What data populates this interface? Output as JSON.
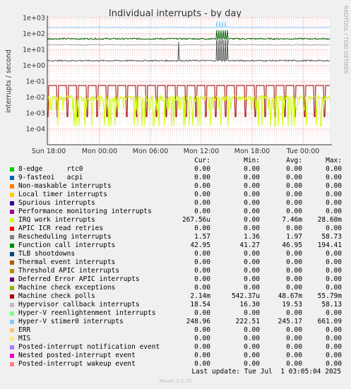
{
  "chart_data": {
    "type": "line",
    "title": "Individual interrupts - by day",
    "ylabel": "interrupts / second",
    "side_label": "RRDTOOL / TOBI OETIKER",
    "scale": "log",
    "ylim": [
      1e-05,
      1000
    ],
    "y_ticks": [
      "1e+03",
      "1e+02",
      "1e+01",
      "1e+00",
      "1e-01",
      "1e-02",
      "1e-03",
      "1e-04"
    ],
    "x_ticks": [
      "Sun 18:00",
      "Mon 00:00",
      "Mon 06:00",
      "Mon 12:00",
      "Mon 18:00",
      "Tue 00:00"
    ],
    "grid": true,
    "series": [
      {
        "name": "Hyper-V stimer0 interrupts",
        "typical": 245.17,
        "color": "#8cc8ff"
      },
      {
        "name": "Function call interrupts",
        "typical": 46.95,
        "color": "#006600"
      },
      {
        "name": "Hypervisor callback interrupts",
        "typical": 19.53,
        "color": "#aaaaaa"
      },
      {
        "name": "Rescheduling interrupts",
        "typical": 1.97,
        "color": "#555555"
      },
      {
        "name": "Machine check polls",
        "typical": 0.04867,
        "color": "#990000"
      },
      {
        "name": "IRQ work interrupts",
        "typical": 0.00746,
        "color": "#ccff00"
      }
    ]
  },
  "legend": {
    "headers": {
      "cur": "Cur:",
      "min": "Min:",
      "avg": "Avg:",
      "max": "Max:"
    },
    "rows": [
      {
        "name": "8-edge      rtc0",
        "color": "#00cc00",
        "cur": "0.00",
        "min": "0.00",
        "avg": "0.00",
        "max": "0.00"
      },
      {
        "name": "9-fasteoi   acpi",
        "color": "#0066b3",
        "cur": "0.00",
        "min": "0.00",
        "avg": "0.00",
        "max": "0.00"
      },
      {
        "name": "Non-maskable interrupts",
        "color": "#ff8000",
        "cur": "0.00",
        "min": "0.00",
        "avg": "0.00",
        "max": "0.00"
      },
      {
        "name": "Local timer interrupts",
        "color": "#ffcc00",
        "cur": "0.00",
        "min": "0.00",
        "avg": "0.00",
        "max": "0.00"
      },
      {
        "name": "Spurious interrupts",
        "color": "#330099",
        "cur": "0.00",
        "min": "0.00",
        "avg": "0.00",
        "max": "0.00"
      },
      {
        "name": "Performance monitoring interrupts",
        "color": "#990099",
        "cur": "0.00",
        "min": "0.00",
        "avg": "0.00",
        "max": "0.00"
      },
      {
        "name": "IRQ work interrupts",
        "color": "#ccff00",
        "cur": "267.56u",
        "min": "0.00",
        "avg": "7.46m",
        "max": "28.60m"
      },
      {
        "name": "APIC ICR read retries",
        "color": "#ff0000",
        "cur": "0.00",
        "min": "0.00",
        "avg": "0.00",
        "max": "0.00"
      },
      {
        "name": "Rescheduling interrupts",
        "color": "#808080",
        "cur": "1.57",
        "min": "1.36",
        "avg": "1.97",
        "max": "58.73"
      },
      {
        "name": "Function call interrupts",
        "color": "#008f00",
        "cur": "42.95",
        "min": "41.27",
        "avg": "46.95",
        "max": "194.41"
      },
      {
        "name": "TLB shootdowns",
        "color": "#00487d",
        "cur": "0.00",
        "min": "0.00",
        "avg": "0.00",
        "max": "0.00"
      },
      {
        "name": "Thermal event interrupts",
        "color": "#b35a00",
        "cur": "0.00",
        "min": "0.00",
        "avg": "0.00",
        "max": "0.00"
      },
      {
        "name": "Threshold APIC interrupts",
        "color": "#b38f00",
        "cur": "0.00",
        "min": "0.00",
        "avg": "0.00",
        "max": "0.00"
      },
      {
        "name": "Deferred Error APIC interrupts",
        "color": "#6b006b",
        "cur": "0.00",
        "min": "0.00",
        "avg": "0.00",
        "max": "0.00"
      },
      {
        "name": "Machine check exceptions",
        "color": "#8fb300",
        "cur": "0.00",
        "min": "0.00",
        "avg": "0.00",
        "max": "0.00"
      },
      {
        "name": "Machine check polls",
        "color": "#b30000",
        "cur": "2.14m",
        "min": "542.37u",
        "avg": "48.67m",
        "max": "55.79m"
      },
      {
        "name": "Hypervisor callback interrupts",
        "color": "#bebebe",
        "cur": "18.54",
        "min": "16.30",
        "avg": "19.53",
        "max": "58.13"
      },
      {
        "name": "Hyper-V reenlightenment interrupts",
        "color": "#80ff80",
        "cur": "0.00",
        "min": "0.00",
        "avg": "0.00",
        "max": "0.00"
      },
      {
        "name": "Hyper-V stimer0 interrupts",
        "color": "#80c9ff",
        "cur": "248.96",
        "min": "222.51",
        "avg": "245.17",
        "max": "661.09"
      },
      {
        "name": "ERR",
        "color": "#ffc080",
        "cur": "0.00",
        "min": "0.00",
        "avg": "0.00",
        "max": "0.00"
      },
      {
        "name": "MIS",
        "color": "#ffe680",
        "cur": "0.00",
        "min": "0.00",
        "avg": "0.00",
        "max": "0.00"
      },
      {
        "name": "Posted-interrupt notification event",
        "color": "#aa80ff",
        "cur": "0.00",
        "min": "0.00",
        "avg": "0.00",
        "max": "0.00"
      },
      {
        "name": "Nested posted-interrupt event",
        "color": "#ee00cc",
        "cur": "0.00",
        "min": "0.00",
        "avg": "0.00",
        "max": "0.00"
      },
      {
        "name": "Posted-interrupt wakeup event",
        "color": "#ff8080",
        "cur": "0.00",
        "min": "0.00",
        "avg": "0.00",
        "max": "0.00"
      }
    ]
  },
  "last_update": "Last update: Tue Jul  1 03:05:04 2025",
  "footer": "Munin 2.0.75"
}
